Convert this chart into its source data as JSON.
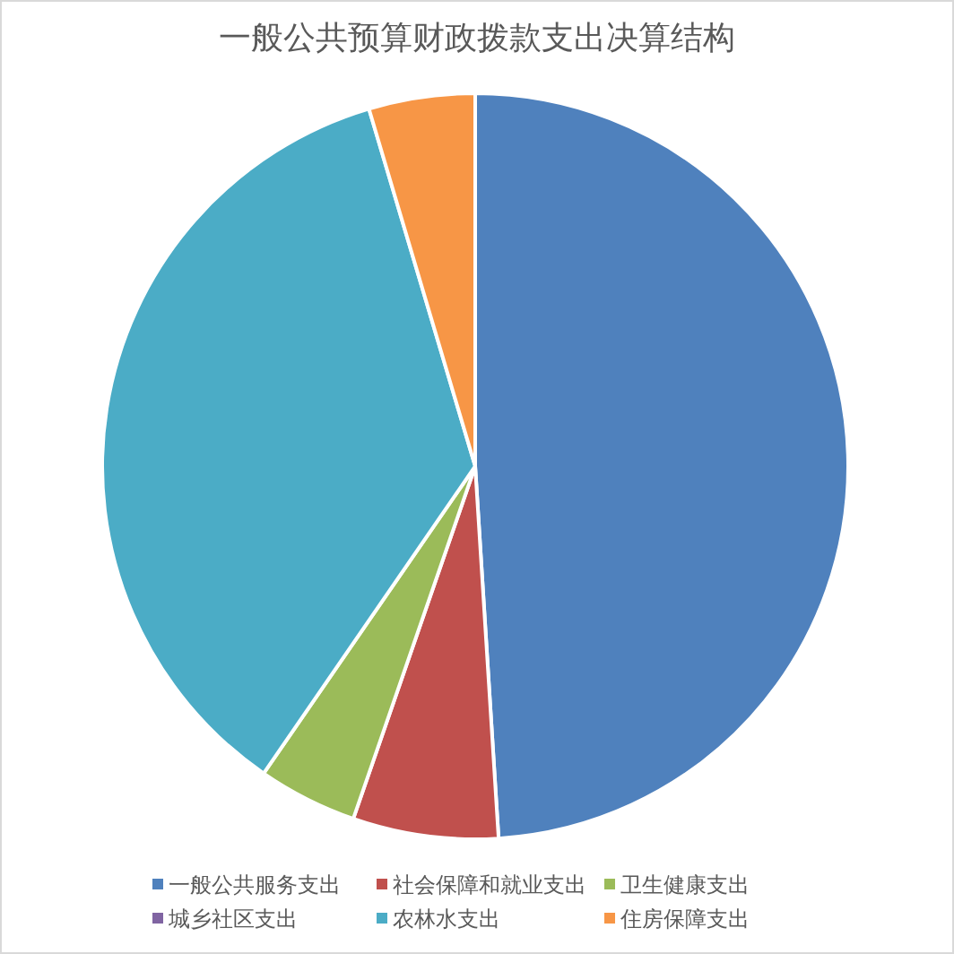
{
  "chart_data": {
    "type": "pie",
    "title": "一般公共预算财政拨款支出决算结构",
    "categories": [
      "一般公共服务支出",
      "社会保障和就业支出",
      "卫生健康支出",
      "城乡社区支出",
      "农林水支出",
      "住房保障支出"
    ],
    "values": [
      49.0,
      6.3,
      4.3,
      0,
      35.8,
      4.6
    ],
    "colors": [
      "#4f81bd",
      "#c0504d",
      "#9bbb59",
      "#8064a2",
      "#4bacc6",
      "#f79646"
    ],
    "legend": "bottom"
  }
}
